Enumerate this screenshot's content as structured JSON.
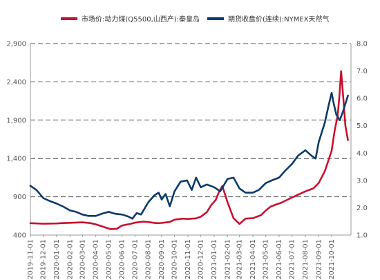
{
  "chart_data": {
    "type": "line",
    "legend_placement": "top",
    "grid": "horizontal dashed",
    "colors": {
      "coal": "#c8102e",
      "gas": "#0b3a6b",
      "grid": "#555555",
      "axis": "#999999"
    },
    "left_axis": {
      "ylim": [
        400,
        2900
      ],
      "ticks": [
        "400",
        "900",
        "1,400",
        "1,900",
        "2,400",
        "2,900"
      ]
    },
    "right_axis": {
      "ylim": [
        1.0,
        8.0
      ],
      "ticks": [
        "1.0",
        "2.0",
        "3.0",
        "4.0",
        "5.0",
        "6.0",
        "7.0",
        "8.0"
      ]
    },
    "x_range": [
      "2019-11-01",
      "2021-11-15"
    ],
    "x_ticks": [
      "2019-11-01",
      "2019-12-01",
      "2020-01-01",
      "2020-02-01",
      "2020-03-01",
      "2020-04-01",
      "2020-05-01",
      "2020-06-01",
      "2020-07-01",
      "2020-08-01",
      "2020-09-01",
      "2020-10-01",
      "2020-11-01",
      "2020-12-01",
      "2021-01-01",
      "2021-02-01",
      "2021-03-01",
      "2021-04-01",
      "2021-05-01",
      "2021-06-01",
      "2021-07-01",
      "2021-08-01",
      "2021-09-01",
      "2021-10-01"
    ],
    "series": [
      {
        "name": "市场价:动力煤(Q5500,山西产):秦皇岛",
        "axis": "left",
        "color": "#c8102e",
        "x": [
          "2019-11-01",
          "2019-12-01",
          "2020-01-01",
          "2020-01-15",
          "2020-02-01",
          "2020-03-01",
          "2020-03-20",
          "2020-04-01",
          "2020-04-20",
          "2020-05-05",
          "2020-05-20",
          "2020-06-01",
          "2020-06-20",
          "2020-07-01",
          "2020-07-20",
          "2020-08-01",
          "2020-08-20",
          "2020-09-01",
          "2020-09-20",
          "2020-10-01",
          "2020-10-20",
          "2020-11-01",
          "2020-11-20",
          "2020-12-01",
          "2020-12-15",
          "2020-12-25",
          "2021-01-05",
          "2021-01-12",
          "2021-01-20",
          "2021-02-01",
          "2021-02-15",
          "2021-03-01",
          "2021-03-15",
          "2021-04-01",
          "2021-04-20",
          "2021-05-01",
          "2021-05-12",
          "2021-05-25",
          "2021-06-05",
          "2021-06-20",
          "2021-07-01",
          "2021-07-20",
          "2021-08-01",
          "2021-08-20",
          "2021-09-01",
          "2021-09-15",
          "2021-10-01",
          "2021-10-08",
          "2021-10-15",
          "2021-10-19",
          "2021-10-23",
          "2021-10-28",
          "2021-11-02",
          "2021-11-08"
        ],
        "values": [
          555,
          548,
          552,
          556,
          560,
          566,
          555,
          540,
          505,
          478,
          482,
          525,
          545,
          562,
          575,
          570,
          555,
          558,
          572,
          600,
          615,
          610,
          618,
          640,
          700,
          790,
          860,
          960,
          1040,
          830,
          620,
          545,
          615,
          620,
          660,
          720,
          770,
          800,
          820,
          860,
          890,
          940,
          970,
          1010,
          1080,
          1230,
          1500,
          1760,
          1960,
          2210,
          2540,
          2200,
          1830,
          1640
        ]
      },
      {
        "name": "期货收盘价(连续):NYMEX天然气",
        "axis": "right",
        "color": "#0b3a6b",
        "x": [
          "2019-11-01",
          "2019-11-15",
          "2019-12-01",
          "2019-12-15",
          "2020-01-01",
          "2020-01-15",
          "2020-02-01",
          "2020-02-15",
          "2020-03-01",
          "2020-03-15",
          "2020-04-01",
          "2020-04-15",
          "2020-05-01",
          "2020-05-15",
          "2020-06-01",
          "2020-06-15",
          "2020-06-25",
          "2020-07-05",
          "2020-07-15",
          "2020-08-01",
          "2020-08-15",
          "2020-08-25",
          "2020-09-01",
          "2020-09-10",
          "2020-09-20",
          "2020-10-01",
          "2020-10-15",
          "2020-10-30",
          "2020-11-10",
          "2020-11-20",
          "2020-12-01",
          "2020-12-15",
          "2021-01-01",
          "2021-01-15",
          "2021-02-01",
          "2021-02-15",
          "2021-03-01",
          "2021-03-15",
          "2021-04-01",
          "2021-04-15",
          "2021-05-01",
          "2021-05-15",
          "2021-06-01",
          "2021-06-15",
          "2021-07-01",
          "2021-07-15",
          "2021-08-01",
          "2021-08-15",
          "2021-08-25",
          "2021-09-01",
          "2021-09-15",
          "2021-09-25",
          "2021-10-01",
          "2021-10-06",
          "2021-10-12",
          "2021-10-20",
          "2021-10-27",
          "2021-11-02",
          "2021-11-08"
        ],
        "values": [
          2.8,
          2.65,
          2.35,
          2.25,
          2.15,
          2.05,
          1.9,
          1.85,
          1.75,
          1.7,
          1.7,
          1.78,
          1.85,
          1.78,
          1.75,
          1.68,
          1.6,
          1.8,
          1.75,
          2.2,
          2.45,
          2.55,
          2.3,
          2.5,
          2.05,
          2.6,
          2.95,
          3.0,
          2.65,
          3.1,
          2.75,
          2.85,
          2.75,
          2.6,
          3.05,
          3.1,
          2.7,
          2.55,
          2.55,
          2.65,
          2.9,
          3.0,
          3.1,
          3.35,
          3.6,
          3.9,
          4.1,
          3.9,
          3.8,
          4.4,
          5.1,
          5.8,
          6.2,
          5.8,
          5.4,
          5.2,
          5.5,
          5.8,
          6.1
        ]
      }
    ]
  }
}
